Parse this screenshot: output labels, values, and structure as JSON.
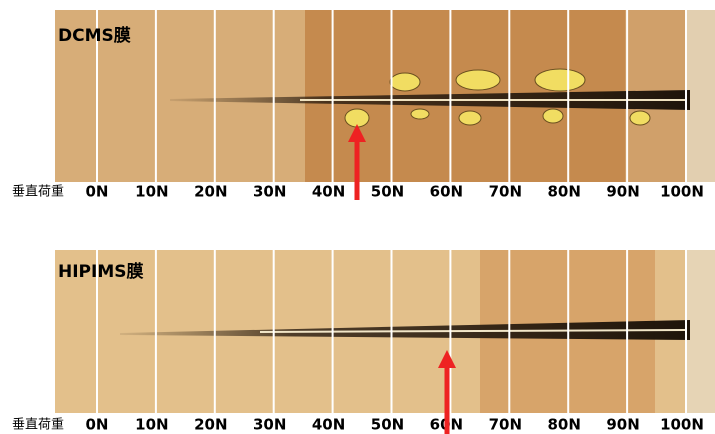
{
  "panels": [
    {
      "title": "DCMS膜",
      "axis_label": "垂直荷重",
      "ticks": [
        "0N",
        "10N",
        "20N",
        "30N",
        "40N",
        "50N",
        "60N",
        "70N",
        "80N",
        "90N",
        "100N"
      ]
    },
    {
      "title": "HIPIMS膜",
      "axis_label": "垂直荷重",
      "ticks": [
        "0N",
        "10N",
        "20N",
        "30N",
        "40N",
        "50N",
        "60N",
        "70N",
        "80N",
        "90N",
        "100N"
      ]
    }
  ]
}
